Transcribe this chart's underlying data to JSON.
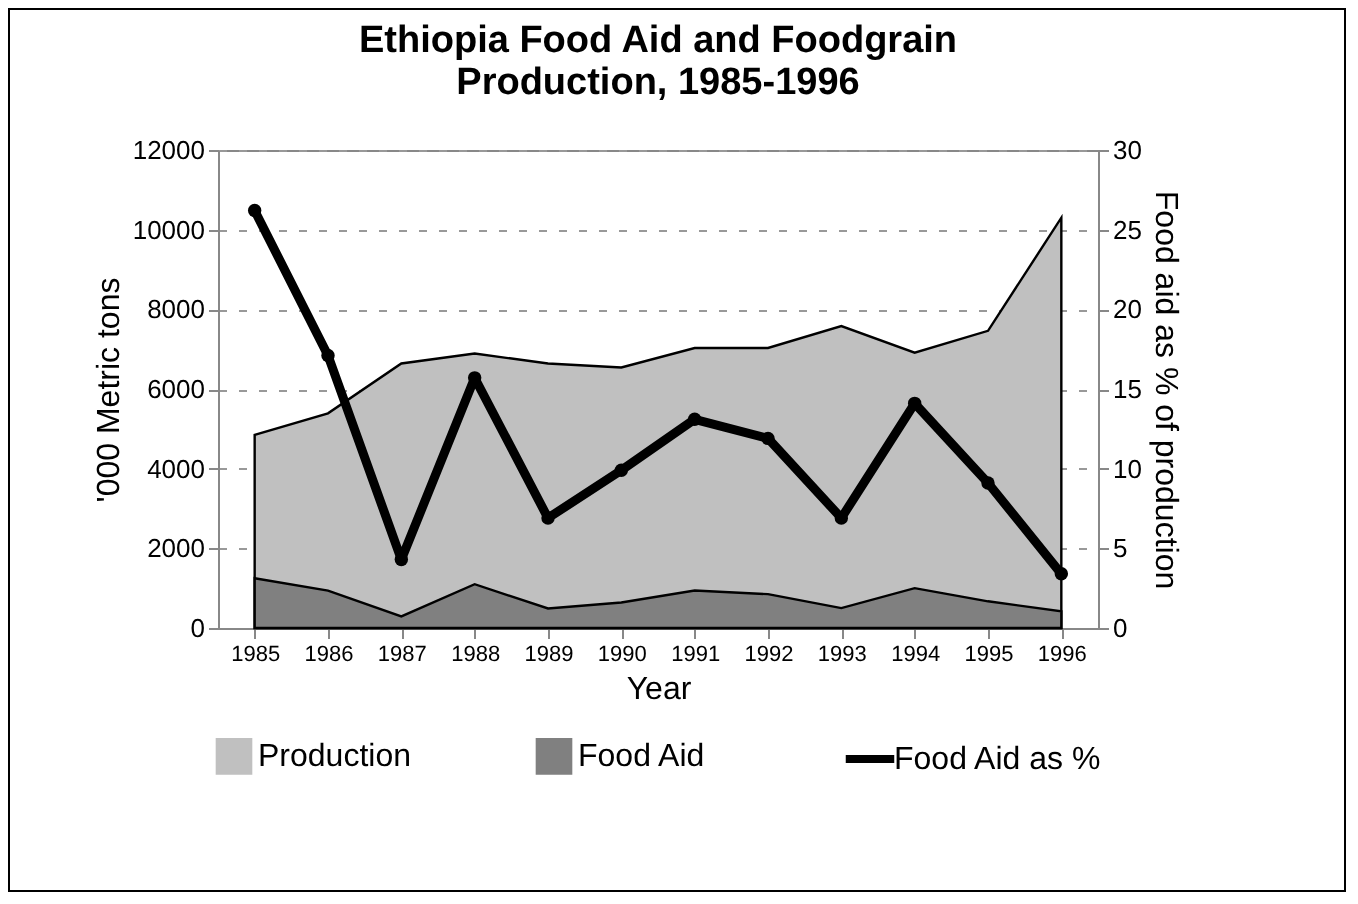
{
  "chart_data": {
    "type": "area",
    "title": "Ethiopia Food Aid and Foodgrain Production, 1985-1996",
    "xlabel": "Year",
    "ylabel": "'000 Metric tons",
    "y2label": "Food aid as % of production",
    "categories": [
      "1985",
      "1986",
      "1987",
      "1988",
      "1989",
      "1990",
      "1991",
      "1992",
      "1993",
      "1994",
      "1995",
      "1996"
    ],
    "series": [
      {
        "name": "Production",
        "color": "#c0c0c0",
        "values": [
          4850,
          5390,
          6640,
          6890,
          6640,
          6540,
          7030,
          7030,
          7580,
          6910,
          7460,
          10300
        ]
      },
      {
        "name": "Food Aid",
        "color": "#808080",
        "values": [
          1250,
          940,
          290,
          1100,
          490,
          640,
          940,
          850,
          500,
          1000,
          670,
          420
        ]
      },
      {
        "name": "Food Aid as %",
        "type": "line",
        "axis": "y2",
        "color": "#000000",
        "marker": "circle",
        "values": [
          26.2,
          17.1,
          4.3,
          15.7,
          6.9,
          9.9,
          13.1,
          11.9,
          6.9,
          14.1,
          9.1,
          3.4
        ]
      }
    ],
    "ylim": [
      0,
      12000
    ],
    "yticks": [
      0,
      2000,
      4000,
      6000,
      8000,
      10000,
      12000
    ],
    "y2lim": [
      0,
      30
    ],
    "y2ticks": [
      0,
      5,
      10,
      15,
      20,
      25,
      30
    ],
    "grid": "y",
    "legend": "bottom"
  }
}
